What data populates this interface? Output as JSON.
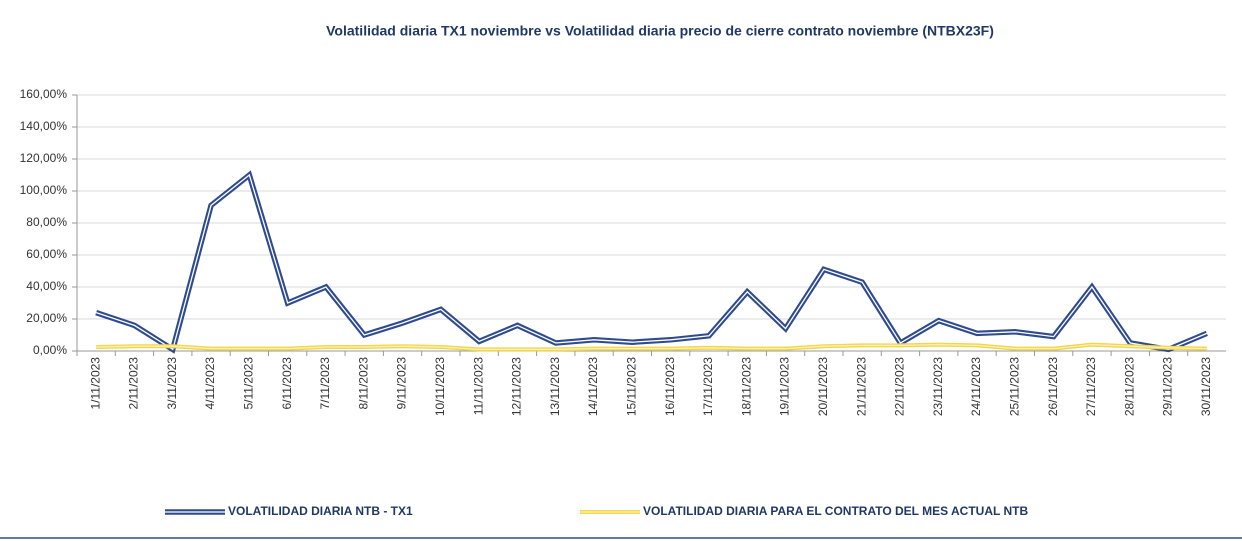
{
  "chart_data": {
    "type": "line",
    "title": "Volatilidad diaria TX1  noviembre vs Volatilidad diaria precio de cierre contrato noviembre (NTBX23F)",
    "categories": [
      "1/11/2023",
      "2/11/2023",
      "3/11/2023",
      "4/11/2023",
      "5/11/2023",
      "6/11/2023",
      "7/11/2023",
      "8/11/2023",
      "9/11/2023",
      "10/11/2023",
      "11/11/2023",
      "12/11/2023",
      "13/11/2023",
      "14/11/2023",
      "15/11/2023",
      "16/11/2023",
      "17/11/2023",
      "18/11/2023",
      "19/11/2023",
      "20/11/2023",
      "21/11/2023",
      "22/11/2023",
      "23/11/2023",
      "24/11/2023",
      "25/11/2023",
      "26/11/2023",
      "27/11/2023",
      "28/11/2023",
      "29/11/2023",
      "30/11/2023"
    ],
    "series": [
      {
        "name": "VOLATILIDAD DIARIA NTB - TX1",
        "color": "#2f4b8f",
        "values": [
          24,
          16,
          1,
          91,
          110,
          30,
          40,
          10,
          17.5,
          26,
          6,
          16,
          5,
          7,
          5.5,
          7,
          9.5,
          37,
          14,
          51,
          43,
          5,
          19,
          11,
          12,
          9,
          40,
          5,
          1,
          11
        ]
      },
      {
        "name": "VOLATILIDAD DIARIA PARA EL CONTRATO DEL MES ACTUAL NTB",
        "color": "#f2d64b",
        "values": [
          2.5,
          3,
          3,
          1.5,
          1.5,
          1.5,
          2.5,
          2.5,
          3,
          2.5,
          1,
          1,
          1,
          1.5,
          1.5,
          1.5,
          2,
          1.5,
          1.5,
          3,
          3.5,
          3.5,
          4,
          3.5,
          1.5,
          1.5,
          4,
          3,
          2,
          1.5
        ]
      }
    ],
    "ylim": [
      0,
      160
    ],
    "yticks": [
      {
        "value": 0,
        "label": "0,00%"
      },
      {
        "value": 20,
        "label": "20,00%"
      },
      {
        "value": 40,
        "label": "40,00%"
      },
      {
        "value": 60,
        "label": "60,00%"
      },
      {
        "value": 80,
        "label": "80,00%"
      },
      {
        "value": 100,
        "label": "100,00%"
      },
      {
        "value": 120,
        "label": "120,00%"
      },
      {
        "value": 140,
        "label": "140,00%"
      },
      {
        "value": 160,
        "label": "160,00%"
      }
    ],
    "grid": true
  }
}
